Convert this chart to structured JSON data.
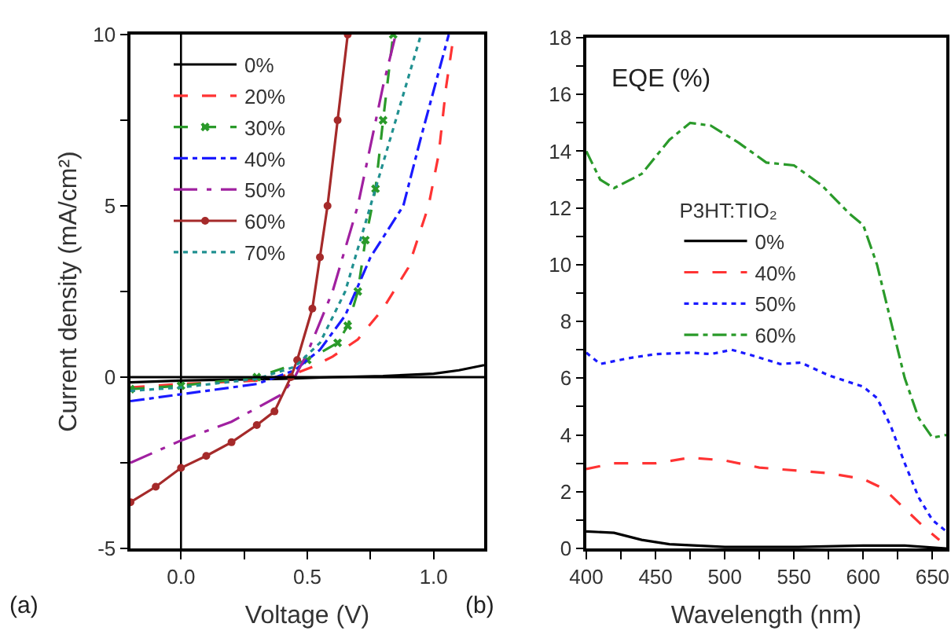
{
  "chart_data": [
    {
      "type": "line",
      "xlabel": "Voltage (V)",
      "ylabel": "Current density (mA/cm²)",
      "annotations": [
        "(a)"
      ],
      "xlim": [
        -0.2,
        1.2
      ],
      "ylim": [
        -5,
        10
      ],
      "xticks": [
        {
          "value": 0,
          "label": "0.0"
        },
        {
          "value": 0.25,
          "label": null
        },
        {
          "value": 0.5,
          "label": "0.5"
        },
        {
          "value": 0.75,
          "label": null
        },
        {
          "value": 1,
          "label": "1.0"
        }
      ],
      "yticks": [
        -5,
        {
          "value": -2.5,
          "label": null
        },
        0,
        {
          "value": 2.5,
          "label": null
        },
        5,
        {
          "value": 7.5,
          "label": null
        },
        10
      ],
      "grid": false,
      "legend": "top left",
      "marker": "none",
      "ref_lines": [
        {
          "axis": "x",
          "value": 0,
          "color": "#000000"
        },
        {
          "axis": "y",
          "value": 0,
          "color": "#000000"
        }
      ],
      "series": [
        {
          "name": "0%",
          "color": "#000000",
          "line_style": "solid",
          "x": [
            -0.2,
            0,
            0.4,
            0.6,
            0.8,
            1.0,
            1.1,
            1.2
          ],
          "values": [
            -0.15,
            -0.1,
            -0.05,
            0,
            0.03,
            0.1,
            0.2,
            0.35
          ]
        },
        {
          "name": "20%",
          "color": "#ff3333",
          "line_style": "dashed",
          "x": [
            -0.2,
            0,
            0.3,
            0.45,
            0.52,
            0.6,
            0.7,
            0.8,
            0.9,
            0.98,
            1.02,
            1.05,
            1.08
          ],
          "values": [
            -0.3,
            -0.2,
            -0.1,
            0.1,
            0.3,
            0.6,
            1.1,
            2,
            3.2,
            5,
            6.5,
            8.5,
            10
          ]
        },
        {
          "name": "30%",
          "color": "#2a9a2a",
          "line_style": "dashed",
          "marker": "cross",
          "x": [
            -0.2,
            0,
            0.3,
            0.5,
            0.62,
            0.66,
            0.7,
            0.73,
            0.77,
            0.8,
            0.84
          ],
          "values": [
            -0.35,
            -0.25,
            0,
            0.5,
            1,
            1.5,
            2.5,
            4,
            5.5,
            7.5,
            10
          ]
        },
        {
          "name": "40%",
          "color": "#1a1aff",
          "line_style": "dashdot",
          "x": [
            -0.2,
            0,
            0.3,
            0.45,
            0.55,
            0.65,
            0.75,
            0.88,
            0.95,
            1.06
          ],
          "values": [
            -0.7,
            -0.5,
            -0.2,
            0.2,
            0.8,
            1.8,
            3.5,
            5,
            7,
            10
          ]
        },
        {
          "name": "50%",
          "color": "#a020a0",
          "line_style": "dashdotdot",
          "x": [
            -0.2,
            0,
            0.2,
            0.4,
            0.45,
            0.5,
            0.6,
            0.7,
            0.8,
            0.85
          ],
          "values": [
            -2.5,
            -1.85,
            -1.3,
            -0.5,
            0,
            0.7,
            2.5,
            5,
            8.5,
            10
          ]
        },
        {
          "name": "60%",
          "color": "#a52a2a",
          "line_style": "solid",
          "marker": "circle",
          "x": [
            -0.2,
            -0.1,
            0,
            0.1,
            0.2,
            0.3,
            0.37,
            0.435,
            0.46,
            0.52,
            0.55,
            0.58,
            0.62,
            0.66
          ],
          "values": [
            -3.65,
            -3.2,
            -2.65,
            -2.3,
            -1.9,
            -1.4,
            -1,
            0,
            0.5,
            2,
            3.5,
            5,
            7.5,
            10
          ]
        },
        {
          "name": "70%",
          "color": "#209090",
          "line_style": "dotted",
          "x": [
            -0.2,
            0,
            0.3,
            0.45,
            0.55,
            0.65,
            0.75,
            0.85,
            0.95
          ],
          "values": [
            -0.4,
            -0.3,
            -0.05,
            0.3,
            1,
            2.5,
            5,
            7.5,
            10
          ]
        }
      ]
    },
    {
      "type": "line",
      "xlabel": "Wavelength (nm)",
      "legend_title": "P3HT:TIO₂",
      "annotations": [
        "(b)",
        "EQE (%)"
      ],
      "xlim": [
        400,
        660
      ],
      "ylim": [
        0,
        18
      ],
      "xticks": [
        400,
        {
          "value": 425,
          "label": null
        },
        450,
        {
          "value": 475,
          "label": null
        },
        500,
        {
          "value": 525,
          "label": null
        },
        550,
        {
          "value": 575,
          "label": null
        },
        600,
        {
          "value": 625,
          "label": null
        },
        650
      ],
      "yticks": [
        0,
        {
          "value": 1,
          "label": null
        },
        2,
        {
          "value": 3,
          "label": null
        },
        4,
        {
          "value": 5,
          "label": null
        },
        6,
        {
          "value": 7,
          "label": null
        },
        8,
        {
          "value": 9,
          "label": null
        },
        10,
        {
          "value": 11,
          "label": null
        },
        12,
        {
          "value": 13,
          "label": null
        },
        14,
        {
          "value": 15,
          "label": null
        },
        16,
        {
          "value": 17,
          "label": null
        },
        18
      ],
      "grid": false,
      "legend": "left",
      "marker": "none",
      "series": [
        {
          "name": "0%",
          "color": "#000000",
          "line_style": "solid",
          "x": [
            400,
            420,
            440,
            460,
            480,
            500,
            550,
            600,
            630,
            660
          ],
          "values": [
            0.6,
            0.55,
            0.3,
            0.15,
            0.1,
            0.05,
            0.05,
            0.1,
            0.1,
            0
          ]
        },
        {
          "name": "40%",
          "color": "#ff3333",
          "line_style": "dashed",
          "x": [
            400,
            420,
            450,
            475,
            500,
            525,
            550,
            575,
            600,
            615,
            630,
            645,
            655
          ],
          "values": [
            2.8,
            3,
            3,
            3.2,
            3.1,
            2.85,
            2.75,
            2.65,
            2.45,
            2.1,
            1.4,
            0.7,
            0.3
          ]
        },
        {
          "name": "50%",
          "color": "#1a1aff",
          "line_style": "dotted",
          "x": [
            400,
            410,
            430,
            450,
            475,
            490,
            505,
            520,
            540,
            555,
            575,
            600,
            610,
            620,
            630,
            640,
            650,
            660
          ],
          "values": [
            6.9,
            6.5,
            6.7,
            6.85,
            6.9,
            6.85,
            7,
            6.8,
            6.5,
            6.55,
            6.1,
            5.7,
            5.3,
            4.3,
            3,
            1.8,
            1,
            0.6
          ]
        },
        {
          "name": "60%",
          "color": "#2a9a2a",
          "line_style": "dashdot",
          "x": [
            400,
            410,
            420,
            440,
            460,
            475,
            490,
            510,
            530,
            550,
            570,
            590,
            600,
            610,
            620,
            630,
            640,
            650,
            660
          ],
          "values": [
            14,
            13,
            12.7,
            13.2,
            14.4,
            15,
            14.9,
            14.3,
            13.6,
            13.5,
            12.8,
            11.8,
            11.4,
            10,
            8,
            6,
            4.6,
            3.9,
            4
          ]
        }
      ]
    }
  ]
}
